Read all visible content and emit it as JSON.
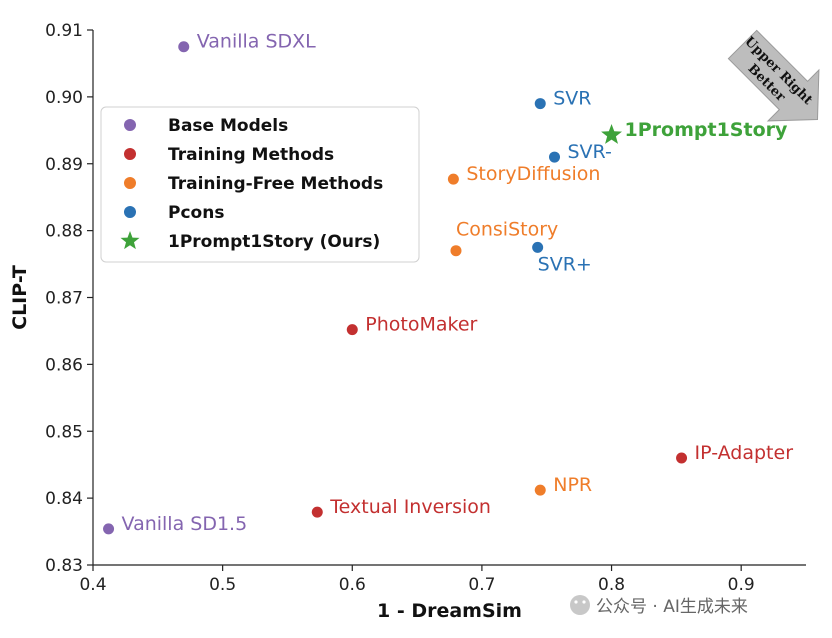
{
  "chart_data": {
    "type": "scatter",
    "xlabel": "1 - DreamSim",
    "ylabel": "CLIP-T",
    "xlim": [
      0.4,
      0.95
    ],
    "ylim": [
      0.83,
      0.91
    ],
    "xticks": [
      0.4,
      0.5,
      0.6,
      0.7,
      0.8,
      0.9
    ],
    "xtick_labels": [
      "0.4",
      "0.5",
      "0.6",
      "0.7",
      "0.8",
      "0.9"
    ],
    "yticks": [
      0.83,
      0.84,
      0.85,
      0.86,
      0.87,
      0.88,
      0.89,
      0.9,
      0.91
    ],
    "ytick_labels": [
      "0.83",
      "0.84",
      "0.85",
      "0.86",
      "0.87",
      "0.88",
      "0.89",
      "0.90",
      "0.91"
    ],
    "colors": {
      "base": "#8465b0",
      "training": "#c33030",
      "training_free": "#ef7d2a",
      "pcons": "#2a72b4",
      "ours": "#3ea23a"
    },
    "legend": {
      "position": "upper-left",
      "entries": [
        {
          "label": "Base Models",
          "group": "base",
          "marker": "circle"
        },
        {
          "label": "Training Methods",
          "group": "training",
          "marker": "circle"
        },
        {
          "label": "Training-Free Methods",
          "group": "training_free",
          "marker": "circle"
        },
        {
          "label": "Pcons",
          "group": "pcons",
          "marker": "circle"
        },
        {
          "label": "1Prompt1Story (Ours)",
          "group": "ours",
          "marker": "star"
        }
      ]
    },
    "points": [
      {
        "name": "Vanilla SDXL",
        "x": 0.47,
        "y": 0.9075,
        "group": "base",
        "marker": "circle",
        "label_pos": "right"
      },
      {
        "name": "Vanilla SD1.5",
        "x": 0.412,
        "y": 0.8354,
        "group": "base",
        "marker": "circle",
        "label_pos": "right"
      },
      {
        "name": "PhotoMaker",
        "x": 0.6,
        "y": 0.8652,
        "group": "training",
        "marker": "circle",
        "label_pos": "right"
      },
      {
        "name": "Textual Inversion",
        "x": 0.573,
        "y": 0.8379,
        "group": "training",
        "marker": "circle",
        "label_pos": "right"
      },
      {
        "name": "IP-Adapter",
        "x": 0.854,
        "y": 0.846,
        "group": "training",
        "marker": "circle",
        "label_pos": "right"
      },
      {
        "name": "StoryDiffusion",
        "x": 0.678,
        "y": 0.8877,
        "group": "training_free",
        "marker": "circle",
        "label_pos": "right"
      },
      {
        "name": "ConsiStory",
        "x": 0.68,
        "y": 0.877,
        "group": "training_free",
        "marker": "circle",
        "label_pos": "above-right"
      },
      {
        "name": "NPR",
        "x": 0.745,
        "y": 0.8412,
        "group": "training_free",
        "marker": "circle",
        "label_pos": "right"
      },
      {
        "name": "SVR",
        "x": 0.745,
        "y": 0.899,
        "group": "pcons",
        "marker": "circle",
        "label_pos": "right"
      },
      {
        "name": "SVR-",
        "x": 0.756,
        "y": 0.891,
        "group": "pcons",
        "marker": "circle",
        "label_pos": "right"
      },
      {
        "name": "SVR+",
        "x": 0.743,
        "y": 0.8775,
        "group": "pcons",
        "marker": "circle",
        "label_pos": "below"
      },
      {
        "name": "1Prompt1Story",
        "x": 0.8,
        "y": 0.8943,
        "group": "ours",
        "marker": "star",
        "label_pos": "right"
      }
    ],
    "annotation": {
      "text_lines": [
        "Upper Right",
        "Better"
      ],
      "position": "top-right"
    }
  },
  "watermark": "公众号 · AI生成未来"
}
